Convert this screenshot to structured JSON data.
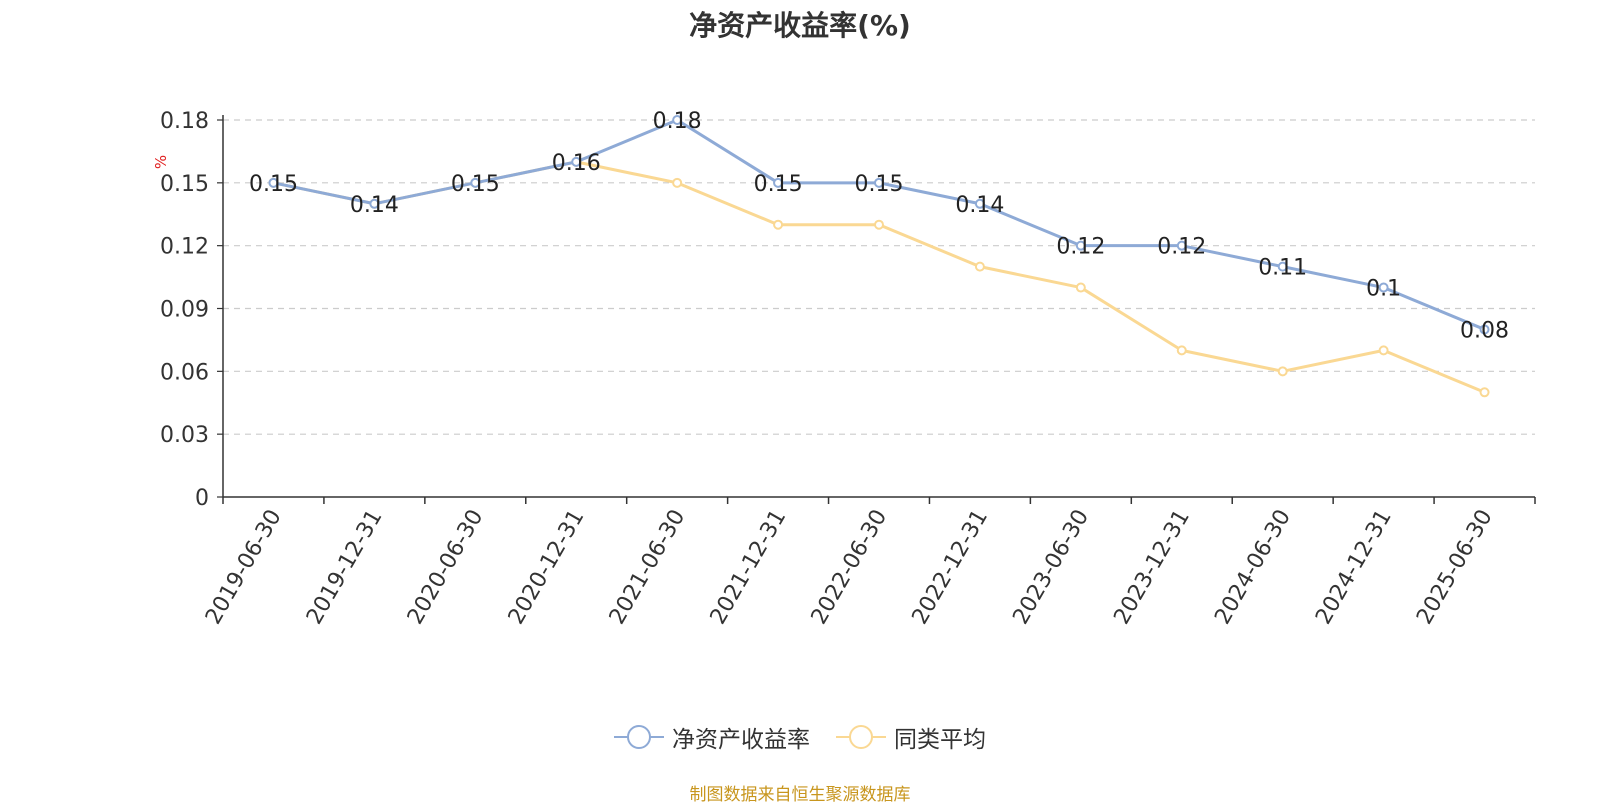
{
  "chart_data": {
    "type": "line",
    "title": "净资产收益率(%)",
    "ylabel": "%",
    "xlabel": "",
    "categories": [
      "2019-06-30",
      "2019-12-31",
      "2020-06-30",
      "2020-12-31",
      "2021-06-30",
      "2021-12-31",
      "2022-06-30",
      "2022-12-31",
      "2023-06-30",
      "2023-12-31",
      "2024-06-30",
      "2024-12-31",
      "2025-06-30"
    ],
    "series": [
      {
        "name": "净资产收益率",
        "color": "#8eaad6",
        "values": [
          0.15,
          0.14,
          0.15,
          0.16,
          0.18,
          0.15,
          0.15,
          0.14,
          0.12,
          0.12,
          0.11,
          0.1,
          0.08
        ],
        "labels": [
          "0.15",
          "0.14",
          "0.15",
          "0.16",
          "0.18",
          "0.15",
          "0.15",
          "0.14",
          "0.12",
          "0.12",
          "0.11",
          "0.1",
          "0.08"
        ]
      },
      {
        "name": "同类平均",
        "color": "#fad893",
        "values": [
          0.15,
          0.14,
          0.15,
          0.16,
          0.15,
          0.13,
          0.13,
          0.11,
          0.1,
          0.07,
          0.06,
          0.07,
          0.05
        ]
      }
    ],
    "yticks": [
      "0",
      "0.03",
      "0.06",
      "0.09",
      "0.12",
      "0.15",
      "0.18"
    ],
    "ylim": [
      0,
      0.18
    ],
    "grid": true,
    "legend_position": "bottom-center"
  },
  "footer": {
    "source": "制图数据来自恒生聚源数据库"
  }
}
